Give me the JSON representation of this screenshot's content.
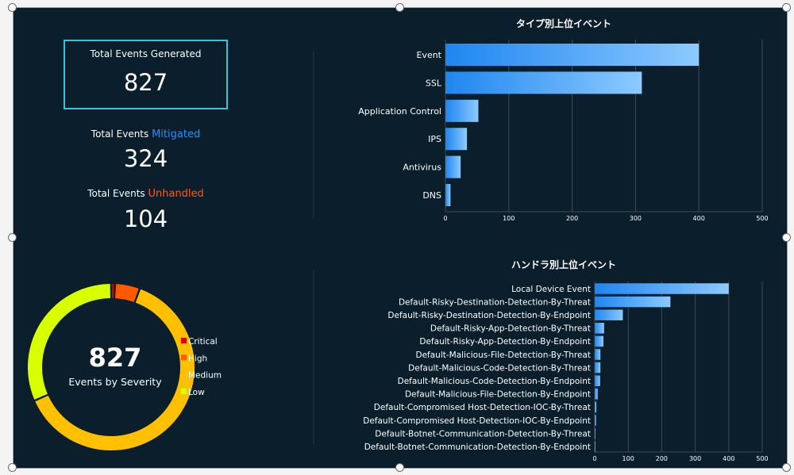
{
  "kpis": {
    "generated_label": "Total Events Generated",
    "generated_value": "827",
    "mitigated_prefix": "Total Events ",
    "mitigated_word": "Mitigated",
    "mitigated_value": "324",
    "unhandled_prefix": "Total Events ",
    "unhandled_word": "Unhandled",
    "unhandled_value": "104"
  },
  "colors": {
    "background": "#0a1f2b",
    "bar_start": "#1f86f0",
    "bar_end": "#8ccaff",
    "mitigated": "#2e8ef0",
    "unhandled": "#ff5a1a",
    "critical": "#e00000",
    "high": "#ff5a00",
    "medium": "#ffc000",
    "low": "#d8ff00"
  },
  "chart_data": [
    {
      "type": "bar",
      "orientation": "horizontal",
      "title": "タイプ別上位イベント",
      "categories": [
        "Event",
        "SSL",
        "Application Control",
        "IPS",
        "Antivirus",
        "DNS"
      ],
      "values": [
        400,
        310,
        52,
        34,
        24,
        8
      ],
      "xlim": [
        0,
        500
      ],
      "xticks": [
        0,
        100,
        200,
        300,
        400,
        500
      ],
      "grid": true
    },
    {
      "type": "bar",
      "orientation": "horizontal",
      "title": "ハンドラ別上位イベント",
      "categories": [
        "Local Device Event",
        "Default-Risky-Destination-Detection-By-Threat",
        "Default-Risky-Destination-Detection-By-Endpoint",
        "Default-Risky-App-Detection-By-Threat",
        "Default-Risky-App-Detection-By-Endpoint",
        "Default-Malicious-File-Detection-By-Threat",
        "Default-Malicious-Code-Detection-By-Threat",
        "Default-Malicious-Code-Detection-By-Endpoint",
        "Default-Malicious-File-Detection-By-Endpoint",
        "Default-Compromised Host-Detection-IOC-By-Threat",
        "Default-Compromised Host-Detection-IOC-By-Endpoint",
        "Default-Botnet-Communication-Detection-By-Threat",
        "Default-Botnet-Communication-Detection-By-Endpoint"
      ],
      "values": [
        400,
        226,
        84,
        28,
        26,
        17,
        17,
        16,
        9,
        5,
        4,
        2,
        1
      ],
      "xlim": [
        0,
        500
      ],
      "xticks": [
        0,
        100,
        200,
        300,
        400,
        500
      ],
      "grid": true
    },
    {
      "type": "pie",
      "donut": true,
      "center_value": "827",
      "center_label": "Events by Severity",
      "labels": [
        "Critical",
        "High",
        "Medium",
        "Low"
      ],
      "values": [
        6,
        40,
        520,
        261
      ],
      "legend": "right"
    }
  ]
}
